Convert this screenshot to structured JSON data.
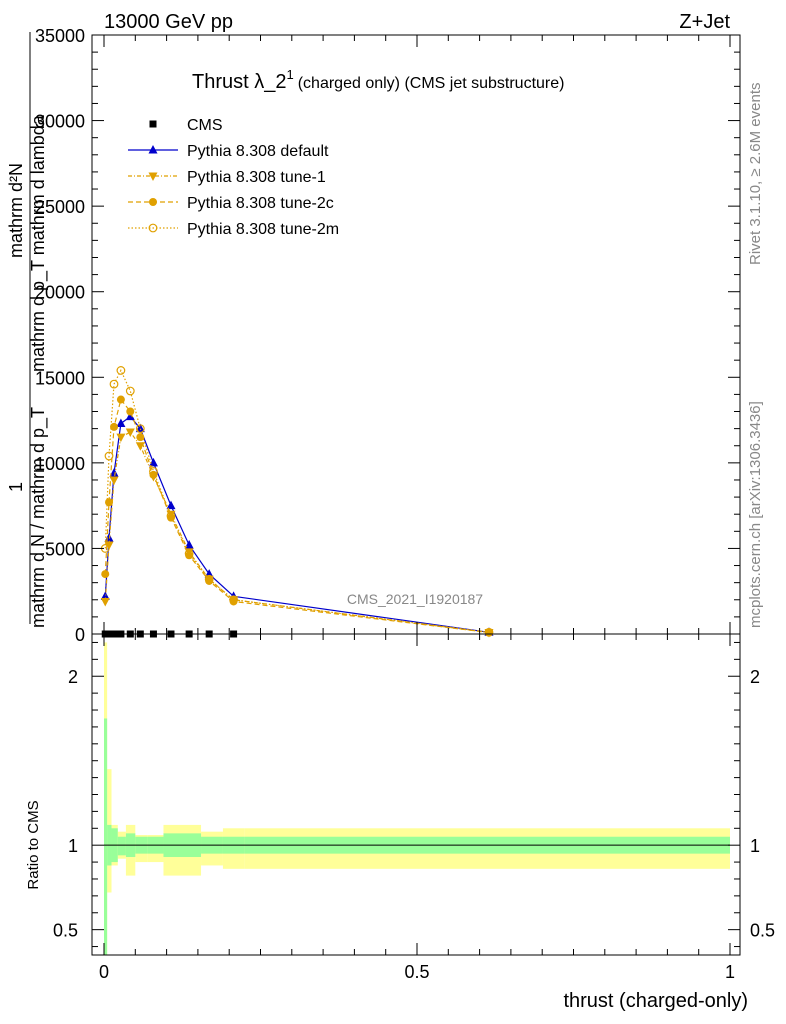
{
  "header": {
    "left": "13000 GeV pp",
    "right": "Z+Jet"
  },
  "side": {
    "rivet": "Rivet 3.1.10, ≥ 2.6M events",
    "mcplots": "mcplots.cern.ch [arXiv:1306.3436]"
  },
  "chart_data": [
    {
      "type": "line",
      "title": "Thrust λ_2¹ (charged only) (CMS jet substructure)",
      "title_main": "Thrust λ_2",
      "title_sup": "1",
      "title_rest": "(charged only) (CMS jet substructure)",
      "ylabel_num": "mathrm d²N",
      "ylabel_den": "mathrm d p_T mathrm d lambda",
      "ylabel_one": "1",
      "ylabel_den2": "mathrm d N / mathrm d p_T",
      "watermark": "CMS_2021_I1920187",
      "xlim": [
        0,
        1
      ],
      "ylim": [
        0,
        35000
      ],
      "yticks": [
        0,
        5000,
        10000,
        15000,
        20000,
        25000,
        30000,
        35000
      ],
      "ytick_labels": [
        "0",
        "5000",
        "10000",
        "15000",
        "20000",
        "25000",
        "30000",
        "35000"
      ],
      "legend_position": "top-left",
      "series": [
        {
          "name": "CMS",
          "color": "#000000",
          "marker": "square",
          "x": [
            0.002,
            0.008,
            0.016,
            0.027,
            0.042,
            0.058,
            0.079,
            0.107,
            0.136,
            0.168,
            0.207
          ],
          "y": [
            0,
            0,
            0,
            0,
            0,
            0,
            0,
            0,
            0,
            0,
            0
          ]
        },
        {
          "name": "Pythia 8.308 default",
          "color": "#0000cc",
          "marker": "triangle-up",
          "x": [
            0.002,
            0.008,
            0.016,
            0.027,
            0.042,
            0.058,
            0.079,
            0.107,
            0.136,
            0.168,
            0.207,
            0.615
          ],
          "y": [
            2200,
            5600,
            9400,
            12300,
            12700,
            12000,
            10000,
            7500,
            5200,
            3500,
            2200,
            100
          ]
        },
        {
          "name": "Pythia 8.308 tune-1",
          "color": "#e0a000",
          "marker": "triangle-down",
          "x": [
            0.002,
            0.008,
            0.016,
            0.027,
            0.042,
            0.058,
            0.079,
            0.107,
            0.136,
            0.168,
            0.207,
            0.615
          ],
          "y": [
            1900,
            5200,
            9000,
            11500,
            11800,
            11000,
            9200,
            7000,
            4800,
            3200,
            2000,
            90
          ]
        },
        {
          "name": "Pythia 8.308 tune-2c",
          "color": "#e0a000",
          "marker": "circle",
          "x": [
            0.002,
            0.008,
            0.016,
            0.027,
            0.042,
            0.058,
            0.079,
            0.107,
            0.136,
            0.168,
            0.207,
            0.615
          ],
          "y": [
            3500,
            7700,
            12100,
            13700,
            13000,
            11500,
            9300,
            6800,
            4600,
            3100,
            1900,
            90
          ]
        },
        {
          "name": "Pythia 8.308 tune-2m",
          "color": "#e0a000",
          "marker": "circle-open",
          "x": [
            0.002,
            0.008,
            0.016,
            0.027,
            0.042,
            0.058,
            0.079,
            0.107,
            0.136,
            0.168,
            0.207,
            0.615
          ],
          "y": [
            5000,
            10400,
            14600,
            15400,
            14200,
            12000,
            9500,
            6900,
            4700,
            3200,
            2000,
            100
          ]
        }
      ]
    },
    {
      "type": "area",
      "ylabel": "Ratio to CMS",
      "xlabel": "thrust (charged-only)",
      "xlim": [
        0,
        1
      ],
      "ylim": [
        0.35,
        2.25
      ],
      "xticks": [
        0,
        0.5,
        1
      ],
      "xtick_labels": [
        "0",
        "0.5",
        "1"
      ],
      "yticks": [
        0.5,
        1,
        2
      ],
      "ytick_labels": [
        "0.5",
        "1",
        "2"
      ],
      "reference_line": 1,
      "bins": [
        0,
        0.005,
        0.012,
        0.022,
        0.035,
        0.05,
        0.07,
        0.095,
        0.155,
        0.19,
        0.225,
        1.0
      ],
      "band_inner": {
        "color": "#99ff99",
        "lo": [
          0.25,
          0.88,
          0.9,
          0.94,
          0.93,
          0.95,
          0.95,
          0.93,
          0.95,
          0.95,
          0.95
        ],
        "hi": [
          1.75,
          1.12,
          1.1,
          1.05,
          1.07,
          1.05,
          1.05,
          1.07,
          1.05,
          1.05,
          1.05
        ]
      },
      "band_outer": {
        "color": "#ffff99",
        "lo": [
          0.1,
          0.72,
          0.88,
          0.92,
          0.82,
          0.9,
          0.9,
          0.82,
          0.88,
          0.86,
          0.86
        ],
        "hi": [
          2.2,
          1.45,
          1.12,
          1.08,
          1.12,
          1.06,
          1.06,
          1.12,
          1.08,
          1.1,
          1.1
        ]
      }
    }
  ]
}
